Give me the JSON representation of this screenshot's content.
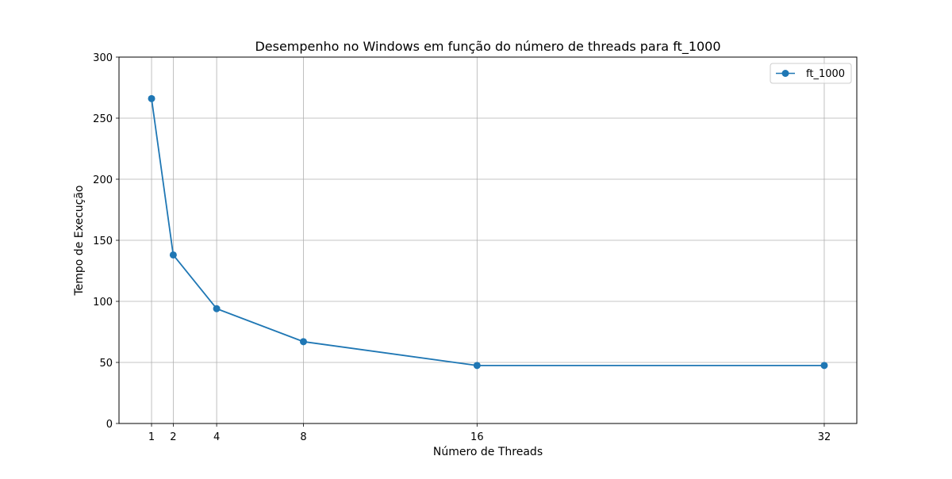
{
  "chart_data": {
    "type": "line",
    "title": "Desempenho no Windows em função do número de threads para ft_1000",
    "xlabel": "Número de Threads",
    "ylabel": "Tempo de Execução",
    "xlim": [
      -0.5,
      33.5
    ],
    "ylim": [
      0,
      300
    ],
    "xticks": [
      1,
      2,
      4,
      8,
      16,
      32
    ],
    "yticks": [
      0,
      50,
      100,
      150,
      200,
      250,
      300
    ],
    "grid": true,
    "legend_position": "top-right",
    "series": [
      {
        "name": "ft_1000",
        "color": "#1f77b4",
        "marker": "circle",
        "x": [
          1,
          2,
          4,
          8,
          16,
          32
        ],
        "y": [
          266,
          138,
          94,
          67,
          47.5,
          47.5
        ]
      }
    ]
  }
}
